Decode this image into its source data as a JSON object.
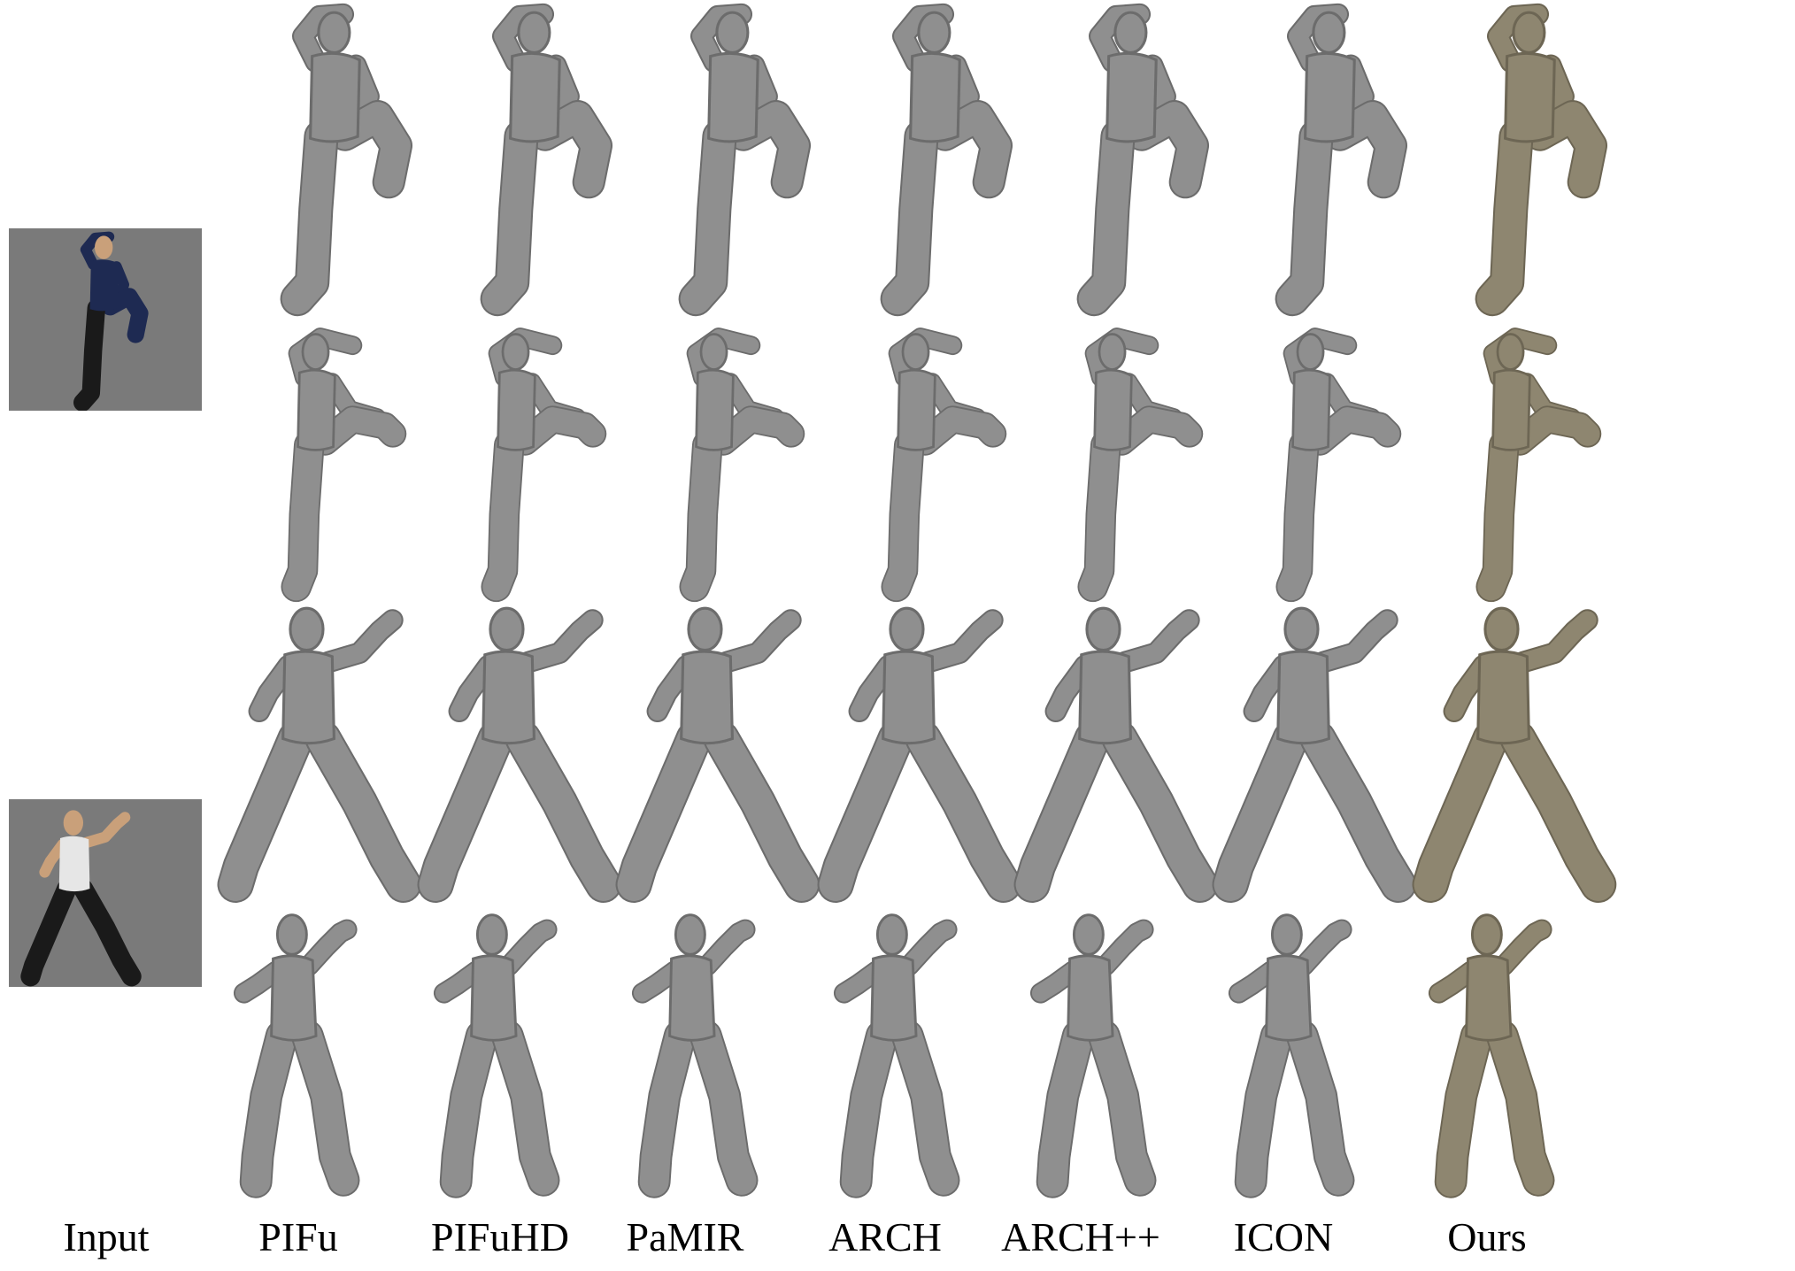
{
  "figure": {
    "column_labels": [
      "Input",
      "PIFu",
      "PIFuHD",
      "PaMIR",
      "ARCH",
      "ARCH++",
      "ICON",
      "Ours"
    ],
    "colors": {
      "background": "#ffffff",
      "input_panel": "#7a7a7a",
      "mesh_gray": "#8f8f8f",
      "mesh_gray_shadow": "#6c6c6c",
      "mesh_ours": "#8e8670",
      "mesh_ours_shadow": "#6d6654",
      "subject_dark_robe": "#1e2a52",
      "subject_skin": "#c9a07a",
      "subject_white_shirt": "#e6e6e6",
      "subject_black_pants": "#1a1a1a"
    },
    "rows": [
      {
        "pose": "high-kick",
        "view": "front"
      },
      {
        "pose": "high-kick",
        "view": "side"
      },
      {
        "pose": "fighting-stance",
        "view": "front"
      },
      {
        "pose": "fighting-stance",
        "view": "side"
      }
    ]
  }
}
